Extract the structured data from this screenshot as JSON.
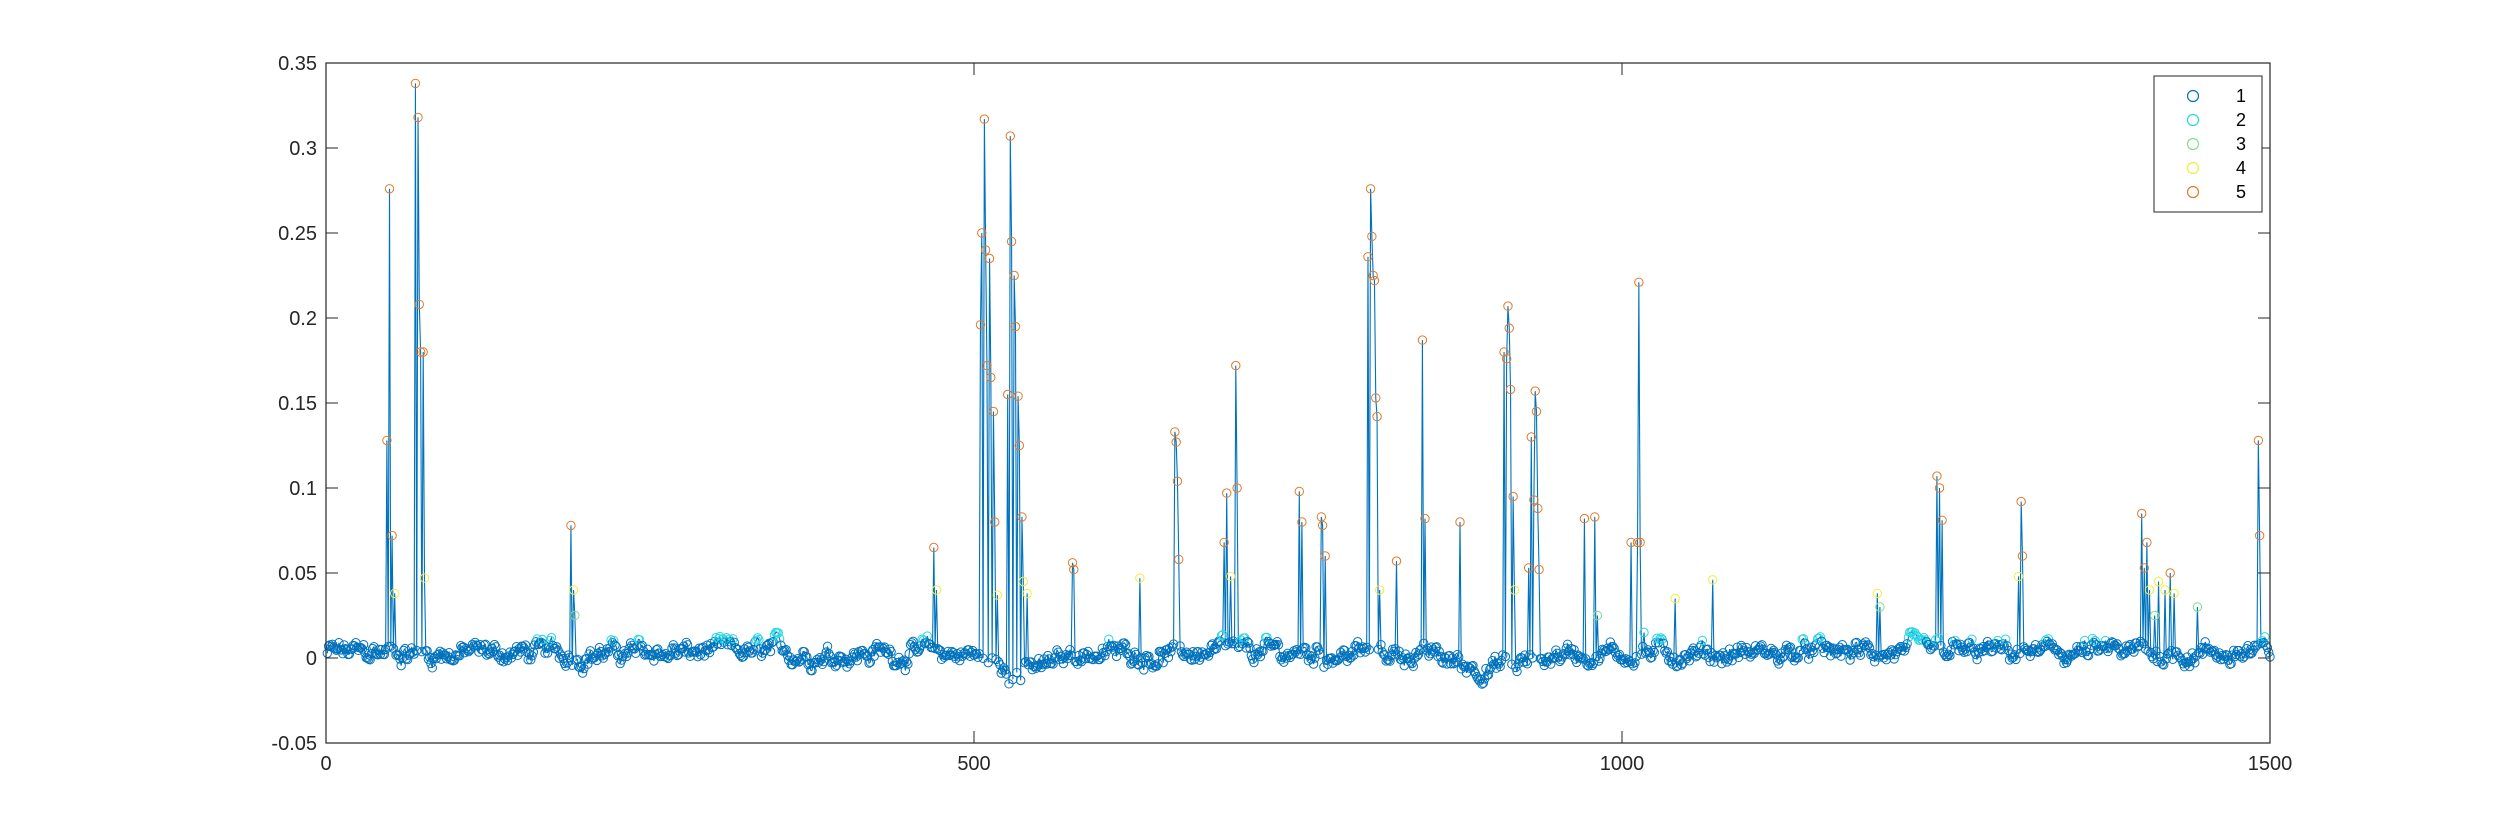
{
  "chart_data": {
    "type": "line",
    "title": "",
    "xlabel": "",
    "ylabel": "",
    "xlim": [
      0,
      1500
    ],
    "ylim": [
      -0.05,
      0.35
    ],
    "xticks": [
      0,
      500,
      1000,
      1500
    ],
    "yticks": [
      -0.05,
      0,
      0.05,
      0.1,
      0.15,
      0.2,
      0.25,
      0.3,
      0.35
    ],
    "xtick_labels": [
      "0",
      "500",
      "1000",
      "1500"
    ],
    "ytick_labels": [
      "-0.05",
      "0",
      "0.05",
      "0.1",
      "0.15",
      "0.2",
      "0.25",
      "0.3",
      "0.35"
    ],
    "grid": false,
    "legend_position": "top-right",
    "line_color": "#0072BD",
    "n_points": 1500,
    "marker_classes": [
      {
        "name": "1",
        "color": "#0072BD",
        "min": -1,
        "max": 0.01
      },
      {
        "name": "2",
        "color": "#26D6E6",
        "min": 0.01,
        "max": 0.02
      },
      {
        "name": "3",
        "color": "#7FE08A",
        "min": 0.02,
        "max": 0.035
      },
      {
        "name": "4",
        "color": "#F2EE3A",
        "min": 0.035,
        "max": 0.05
      },
      {
        "name": "5",
        "color": "#E07A2A",
        "min": 0.05,
        "max": 1
      }
    ],
    "peaks": [
      [
        46,
        0.128
      ],
      [
        48,
        0.276
      ],
      [
        50,
        0.072
      ],
      [
        52,
        0.038
      ],
      [
        68,
        0.338
      ],
      [
        70,
        0.318
      ],
      [
        71,
        0.208
      ],
      [
        72,
        0.18
      ],
      [
        74,
        0.18
      ],
      [
        75,
        0.047
      ],
      [
        188,
        0.078
      ],
      [
        190,
        0.04
      ],
      [
        191,
        0.025
      ],
      [
        468,
        0.065
      ],
      [
        470,
        0.04
      ],
      [
        504,
        0.196
      ],
      [
        505,
        0.25
      ],
      [
        507,
        0.317
      ],
      [
        508,
        0.24
      ],
      [
        509,
        0.172
      ],
      [
        511,
        0.235
      ],
      [
        512,
        0.165
      ],
      [
        514,
        0.145
      ],
      [
        515,
        0.08
      ],
      [
        517,
        0.037
      ],
      [
        525,
        0.155
      ],
      [
        527,
        0.307
      ],
      [
        528,
        0.245
      ],
      [
        530,
        0.225
      ],
      [
        531,
        0.195
      ],
      [
        533,
        0.154
      ],
      [
        534,
        0.125
      ],
      [
        536,
        0.083
      ],
      [
        537,
        0.045
      ],
      [
        540,
        0.038
      ],
      [
        575,
        0.056
      ],
      [
        576,
        0.052
      ],
      [
        627,
        0.047
      ],
      [
        654,
        0.133
      ],
      [
        655,
        0.127
      ],
      [
        656,
        0.104
      ],
      [
        657,
        0.058
      ],
      [
        692,
        0.068
      ],
      [
        694,
        0.097
      ],
      [
        697,
        0.048
      ],
      [
        701,
        0.172
      ],
      [
        702,
        0.1
      ],
      [
        750,
        0.098
      ],
      [
        752,
        0.08
      ],
      [
        767,
        0.083
      ],
      [
        768,
        0.078
      ],
      [
        770,
        0.06
      ],
      [
        803,
        0.236
      ],
      [
        805,
        0.276
      ],
      [
        806,
        0.248
      ],
      [
        807,
        0.225
      ],
      [
        808,
        0.222
      ],
      [
        809,
        0.153
      ],
      [
        810,
        0.142
      ],
      [
        812,
        0.04
      ],
      [
        825,
        0.057
      ],
      [
        845,
        0.187
      ],
      [
        847,
        0.082
      ],
      [
        874,
        0.08
      ],
      [
        908,
        0.18
      ],
      [
        910,
        0.176
      ],
      [
        911,
        0.207
      ],
      [
        912,
        0.194
      ],
      [
        913,
        0.158
      ],
      [
        915,
        0.095
      ],
      [
        916,
        0.04
      ],
      [
        927,
        0.053
      ],
      [
        929,
        0.13
      ],
      [
        931,
        0.093
      ],
      [
        932,
        0.157
      ],
      [
        933,
        0.145
      ],
      [
        934,
        0.088
      ],
      [
        935,
        0.052
      ],
      [
        970,
        0.082
      ],
      [
        978,
        0.083
      ],
      [
        980,
        0.025
      ],
      [
        1006,
        0.068
      ],
      [
        1011,
        0.068
      ],
      [
        1012,
        0.221
      ],
      [
        1013,
        0.068
      ],
      [
        1016,
        0.015
      ],
      [
        1040,
        0.035
      ],
      [
        1069,
        0.046
      ],
      [
        1196,
        0.038
      ],
      [
        1198,
        0.03
      ],
      [
        1242,
        0.107
      ],
      [
        1244,
        0.1
      ],
      [
        1246,
        0.081
      ],
      [
        1305,
        0.048
      ],
      [
        1307,
        0.092
      ],
      [
        1308,
        0.06
      ],
      [
        1400,
        0.085
      ],
      [
        1402,
        0.053
      ],
      [
        1404,
        0.068
      ],
      [
        1406,
        0.04
      ],
      [
        1410,
        0.025
      ],
      [
        1413,
        0.045
      ],
      [
        1418,
        0.04
      ],
      [
        1422,
        0.05
      ],
      [
        1425,
        0.038
      ],
      [
        1443,
        0.03
      ],
      [
        1490,
        0.128
      ],
      [
        1491,
        0.072
      ],
      [
        1493,
        0.01
      ]
    ]
  }
}
